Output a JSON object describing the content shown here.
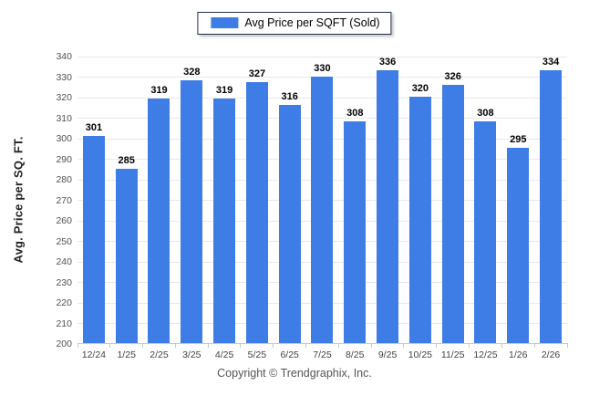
{
  "legend": {
    "label": "Avg Price per SQFT (Sold)"
  },
  "footer": {
    "copyright": "Copyright © Trendgraphix, Inc."
  },
  "colors": {
    "bar": "#3e7de6",
    "gridline": "#e9e9e9",
    "axis": "#c9c9c9",
    "legend_border": "#22304a"
  },
  "chart_data": {
    "type": "bar",
    "title": "",
    "series": [
      {
        "name": "Avg Price per SQFT (Sold)",
        "values": [
          301,
          285,
          319,
          328,
          319,
          327,
          316,
          330,
          308,
          336,
          320,
          326,
          308,
          295,
          334
        ]
      }
    ],
    "categories": [
      "12/24",
      "1/25",
      "2/25",
      "3/25",
      "4/25",
      "5/25",
      "6/25",
      "7/25",
      "8/25",
      "9/25",
      "10/25",
      "11/25",
      "12/25",
      "1/26",
      "2/26"
    ],
    "xlabel": "",
    "ylabel": "Avg. Price per SQ. FT.",
    "ylim": [
      200,
      340
    ],
    "ytick_step": 10,
    "grid": true,
    "data_labels": true,
    "legend_position": "top-center"
  }
}
